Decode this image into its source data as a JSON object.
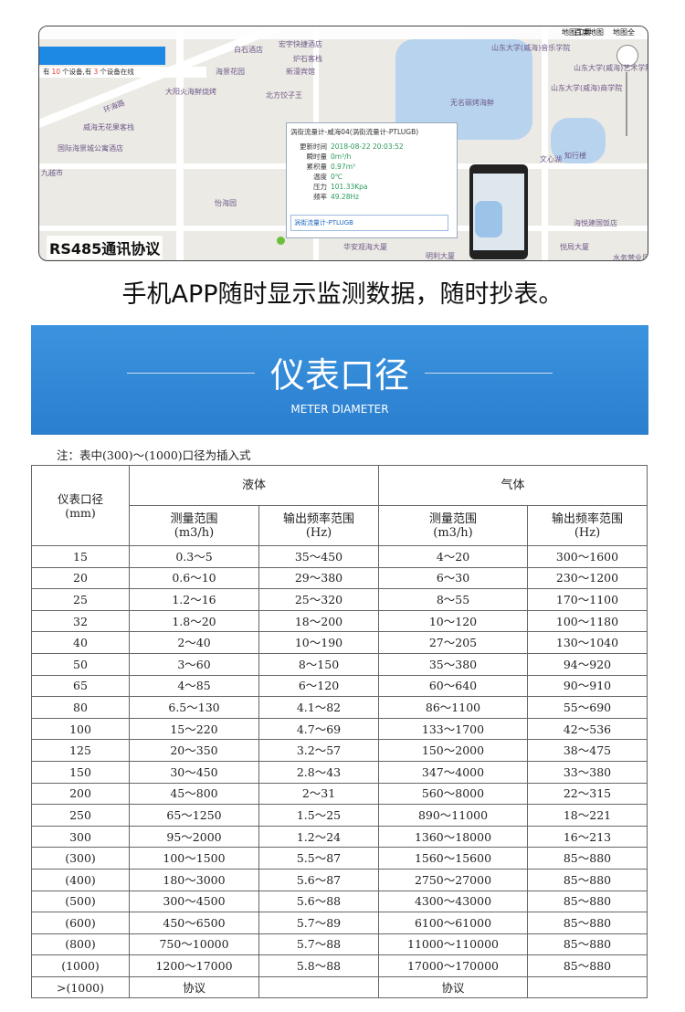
{
  "map": {
    "toolbar": [
      "地图工具",
      "百度地图",
      "地图全"
    ],
    "info_bar": [
      "有",
      "10",
      "个设备,有",
      "3",
      "个设备在线"
    ],
    "labels": [
      "白石酒店",
      "宏宇快捷酒店",
      "海景花园",
      "炉石客栈",
      "新濠宾馆",
      "大阳火海鲜烧烤",
      "北方饺子王",
      "环海路",
      "威海无花果客栈",
      "国际海景城公寓酒店",
      "九越市",
      "怡海园",
      "华安观海大厦",
      "明利大厦",
      "山东大学(威海)音乐学院",
      "山东大学(威海)艺术学院",
      "山东大学(威海)商学院",
      "无名碳烤海鲜",
      "文心湖",
      "知行楼",
      "海悦建国饭店",
      "悦局大厦",
      "水务营业厅"
    ],
    "popup": {
      "title": "涡街流量计-威海04(涡街流量计-PTLUGB)",
      "rows": [
        [
          "更新时间",
          "2018-08-22 20:03:52"
        ],
        [
          "瞬时量",
          "0m³/h"
        ],
        [
          "累积量",
          "0.97m³"
        ],
        [
          "温度",
          "0℃"
        ],
        [
          "压力",
          "101.33Kpa"
        ],
        [
          "频率",
          "49.28Hz"
        ]
      ],
      "footer": "涡街流量计-PTLUGB"
    },
    "badge": "RS485通讯协议"
  },
  "caption": "手机APP随时显示监测数据，随时抄表。",
  "banner": {
    "title": "仪表口径",
    "subtitle": "METER DIAMETER"
  },
  "note": "注：表中(300)～(1000)口径为插入式",
  "table": {
    "first": [
      "仪表口径",
      "(mm)"
    ],
    "groups": [
      "液体",
      "气体"
    ],
    "sub": [
      [
        "测量范围",
        "(m3/h)"
      ],
      [
        "输出频率范围",
        "(Hz)"
      ],
      [
        "测量范围",
        "(m3/h)"
      ],
      [
        "输出频率范围",
        "(Hz)"
      ]
    ],
    "rows": [
      [
        "15",
        "0.3～5",
        "35～450",
        "4～20",
        "300～1600"
      ],
      [
        "20",
        "0.6～10",
        "29～380",
        "6～30",
        "230～1200"
      ],
      [
        "25",
        "1.2～16",
        "25～320",
        "8～55",
        "170～1100"
      ],
      [
        "32",
        "1.8～20",
        "18～200",
        "10～120",
        "100～1180"
      ],
      [
        "40",
        "2～40",
        "10～190",
        "27～205",
        "130～1040"
      ],
      [
        "50",
        "3～60",
        "8～150",
        "35～380",
        "94～920"
      ],
      [
        "65",
        "4～85",
        "6～120",
        "60～640",
        "90～910"
      ],
      [
        "80",
        "6.5～130",
        "4.1～82",
        "86～1100",
        "55～690"
      ],
      [
        "100",
        "15～220",
        "4.7～69",
        "133～1700",
        "42～536"
      ],
      [
        "125",
        "20～350",
        "3.2～57",
        "150～2000",
        "38～475"
      ],
      [
        "150",
        "30～450",
        "2.8～43",
        "347～4000",
        "33～380"
      ],
      [
        "200",
        "45～800",
        "2～31",
        "560～8000",
        "22～315"
      ],
      [
        "250",
        "65～1250",
        "1.5～25",
        "890～11000",
        "18～221"
      ],
      [
        "300",
        "95～2000",
        "1.2～24",
        "1360～18000",
        "16～213"
      ],
      [
        "(300)",
        "100～1500",
        "5.5～87",
        "1560～15600",
        "85～880"
      ],
      [
        "(400)",
        "180～3000",
        "5.6～87",
        "2750～27000",
        "85～880"
      ],
      [
        "(500)",
        "300～4500",
        "5.6～88",
        "4300～43000",
        "85～880"
      ],
      [
        "(600)",
        "450～6500",
        "5.7～89",
        "6100～61000",
        "85～880"
      ],
      [
        "(800)",
        "750～10000",
        "5.7～88",
        "11000～110000",
        "85～880"
      ],
      [
        "(1000)",
        "1200～17000",
        "5.8～88",
        "17000～170000",
        "85～880"
      ],
      [
        ">(1000)",
        "协议",
        null,
        "协议",
        null
      ]
    ]
  }
}
